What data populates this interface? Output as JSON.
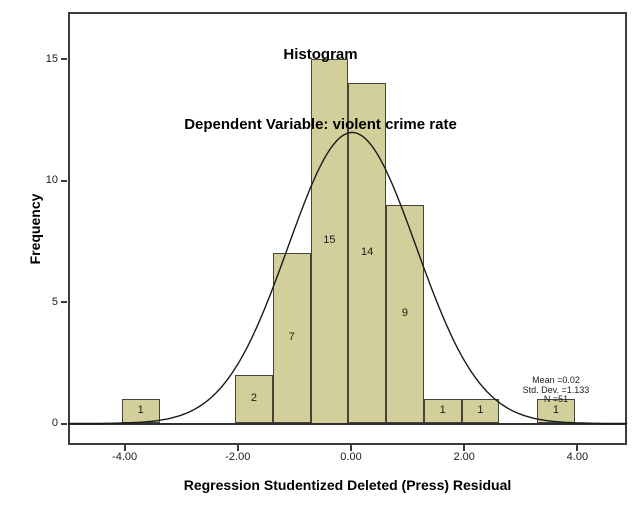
{
  "chart_data": {
    "type": "histogram",
    "title": "Histogram",
    "subtitle": "Dependent Variable: violent crime rate",
    "xlabel": "Regression Studentized Deleted (Press) Residual",
    "ylabel": "Frequency",
    "xlim": [
      -5.0,
      4.88
    ],
    "ylim": [
      0,
      17
    ],
    "grid": false,
    "bin_start": -4.05,
    "bin_width": 0.667,
    "counts": [
      1,
      0,
      0,
      2,
      7,
      15,
      14,
      9,
      1,
      1,
      0,
      1
    ],
    "bar_value_labels": [
      "1",
      "2",
      "7",
      "15",
      "14",
      "9",
      "1",
      "1",
      "1"
    ],
    "x_ticks": [
      {
        "value": -4,
        "label": "-4.00"
      },
      {
        "value": -2,
        "label": "-2.00"
      },
      {
        "value": 0,
        "label": "0.00"
      },
      {
        "value": 2,
        "label": "2.00"
      },
      {
        "value": 4,
        "label": "4.00"
      }
    ],
    "y_ticks": [
      {
        "value": 0,
        "label": "0"
      },
      {
        "value": 5,
        "label": "5"
      },
      {
        "value": 10,
        "label": "10"
      },
      {
        "value": 15,
        "label": "15"
      }
    ],
    "normal_curve": {
      "mean": 0.02,
      "std_dev": 1.133,
      "n": 51
    },
    "stats_lines": [
      "Mean =0.02",
      "Std. Dev. =1.133",
      "N =51"
    ],
    "colors": {
      "bar_fill": "#d3cf9a",
      "bar_border": "#44443a",
      "curve": "#1a1a1a",
      "frame": "#3c3c3c",
      "background": "#ffffff"
    }
  }
}
